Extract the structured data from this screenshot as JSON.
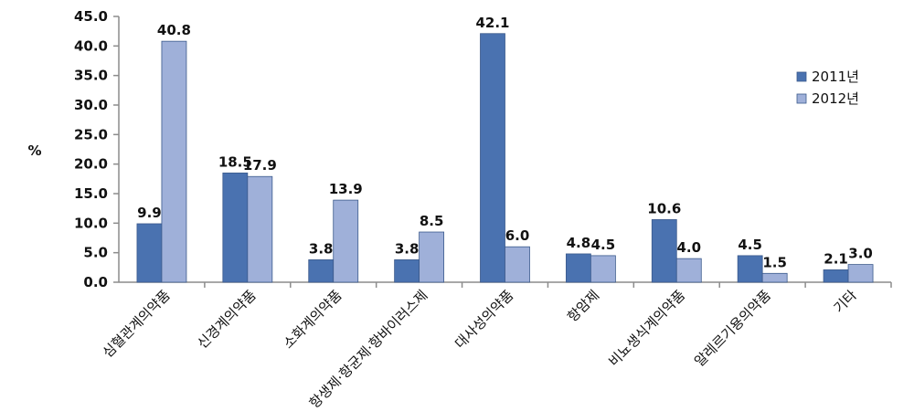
{
  "chart_data": {
    "type": "bar",
    "ylabel": "%",
    "ylim": [
      0,
      45
    ],
    "yticks": [
      "0.0",
      "5.0",
      "10.0",
      "15.0",
      "20.0",
      "25.0",
      "30.0",
      "35.0",
      "40.0",
      "45.0"
    ],
    "grid": false,
    "legend_position": "right",
    "categories": [
      "심혈관계의약품",
      "신경계의약품",
      "소화계의약품",
      "항생제·항균제·항바이러스제",
      "대사성의약품",
      "항암제",
      "비뇨생식계의약품",
      "알레르기용의약품",
      "기타"
    ],
    "series": [
      {
        "name": "2011년",
        "color": "#4a72b0",
        "values": [
          9.9,
          18.5,
          3.8,
          3.8,
          42.1,
          4.8,
          10.6,
          4.5,
          2.1
        ],
        "labels": [
          "9.9",
          "18.5",
          "3.8",
          "3.8",
          "42.1",
          "4.8",
          "10.6",
          "4.5",
          "2.1"
        ]
      },
      {
        "name": "2012년",
        "color": "#9fb0d9",
        "values": [
          40.8,
          17.9,
          13.9,
          8.5,
          6.0,
          4.5,
          4.0,
          1.5,
          3.0
        ],
        "labels": [
          "40.8",
          "17.9",
          "13.9",
          "8.5",
          "6.0",
          "4.5",
          "4.0",
          "1.5",
          "3.0"
        ]
      }
    ]
  }
}
